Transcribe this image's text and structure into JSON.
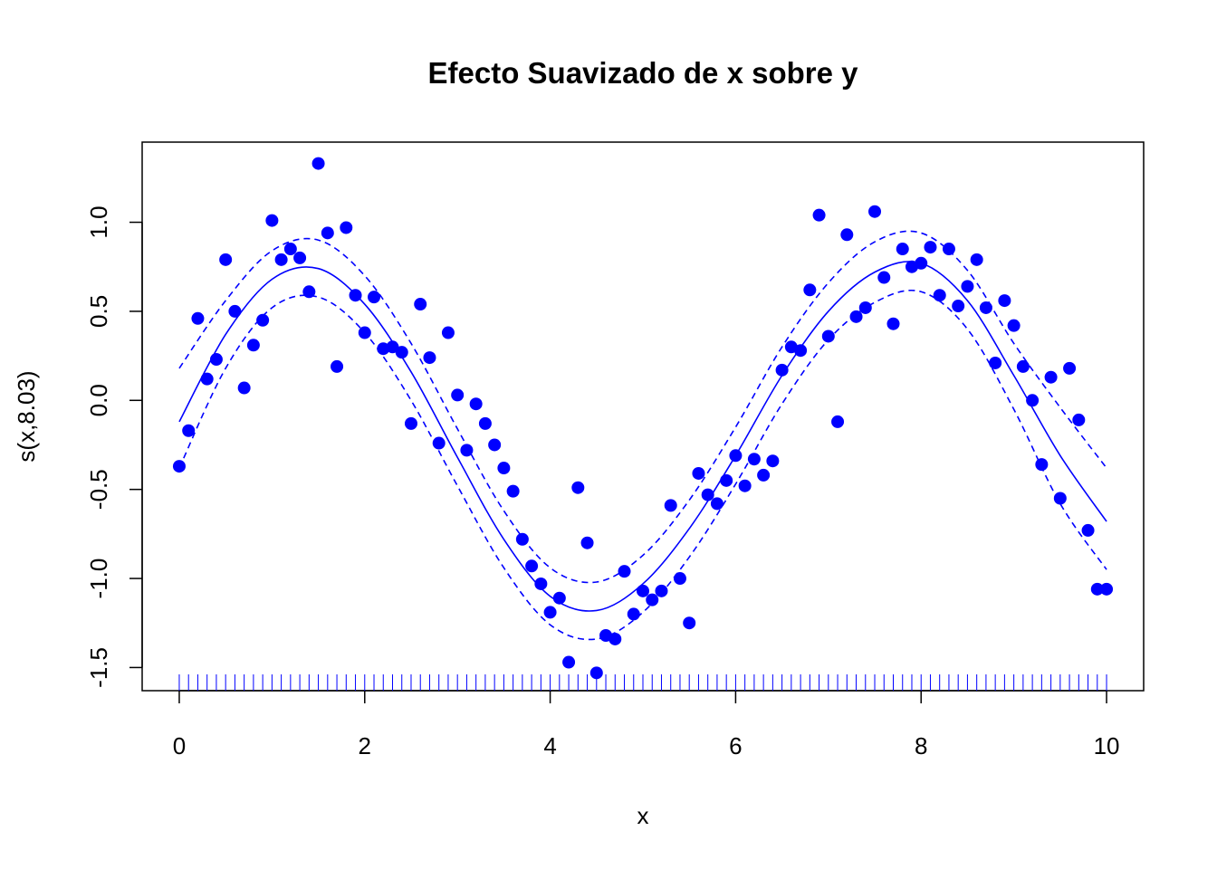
{
  "chart_data": {
    "type": "scatter",
    "title": "Efecto Suavizado de x sobre y",
    "xlabel": "x",
    "ylabel": "s(x,8.03)",
    "xlim": [
      -0.4,
      10.4
    ],
    "ylim": [
      -1.63,
      1.45
    ],
    "x_ticks": [
      0,
      2,
      4,
      6,
      8,
      10
    ],
    "x_tick_labels": [
      "0",
      "2",
      "4",
      "6",
      "8",
      "10"
    ],
    "y_ticks": [
      -1.5,
      -1.0,
      -0.5,
      0.0,
      0.5,
      1.0
    ],
    "y_tick_labels": [
      "-1.5",
      "-1.0",
      "-0.5",
      "0.0",
      "0.5",
      "1.0"
    ],
    "grid": false,
    "color": "#0000ff",
    "rug": true,
    "series": [
      {
        "kind": "points",
        "x": [
          0.0,
          0.1,
          0.2,
          0.3,
          0.4,
          0.5,
          0.6,
          0.7,
          0.8,
          0.9,
          1.0,
          1.1,
          1.2,
          1.3,
          1.4,
          1.5,
          1.6,
          1.7,
          1.8,
          1.9,
          2.0,
          2.1,
          2.2,
          2.3,
          2.4,
          2.5,
          2.6,
          2.7,
          2.8,
          2.9,
          3.0,
          3.1,
          3.2,
          3.3,
          3.4,
          3.5,
          3.6,
          3.7,
          3.8,
          3.9,
          4.0,
          4.1,
          4.2,
          4.3,
          4.4,
          4.5,
          4.6,
          4.7,
          4.8,
          4.9,
          5.0,
          5.1,
          5.2,
          5.3,
          5.4,
          5.5,
          5.6,
          5.7,
          5.8,
          5.9,
          6.0,
          6.1,
          6.2,
          6.3,
          6.4,
          6.5,
          6.6,
          6.7,
          6.8,
          6.9,
          7.0,
          7.1,
          7.2,
          7.3,
          7.4,
          7.5,
          7.6,
          7.7,
          7.8,
          7.9,
          8.0,
          8.1,
          8.2,
          8.3,
          8.4,
          8.5,
          8.6,
          8.7,
          8.8,
          8.9,
          9.0,
          9.1,
          9.2,
          9.3,
          9.4,
          9.5,
          9.6,
          9.7,
          9.8,
          9.9,
          10.0
        ],
        "y": [
          -0.37,
          -0.17,
          0.46,
          0.12,
          0.23,
          0.79,
          0.5,
          0.07,
          0.31,
          0.45,
          1.01,
          0.79,
          0.85,
          0.8,
          0.61,
          1.33,
          0.94,
          0.19,
          0.97,
          0.59,
          0.38,
          0.58,
          0.29,
          0.3,
          0.27,
          -0.13,
          0.54,
          0.24,
          -0.24,
          0.38,
          0.03,
          -0.28,
          -0.02,
          -0.13,
          -0.25,
          -0.38,
          -0.51,
          -0.78,
          -0.93,
          -1.03,
          -1.19,
          -1.11,
          -1.47,
          -0.49,
          -0.8,
          -1.53,
          -1.32,
          -1.34,
          -0.96,
          -1.2,
          -1.07,
          -1.12,
          -1.07,
          -0.59,
          -1.0,
          -1.25,
          -0.41,
          -0.53,
          -0.58,
          -0.45,
          -0.31,
          -0.48,
          -0.33,
          -0.42,
          -0.34,
          0.17,
          0.3,
          0.28,
          0.62,
          1.04,
          0.36,
          -0.12,
          0.93,
          0.47,
          0.52,
          1.06,
          0.69,
          0.43,
          0.85,
          0.75,
          0.77,
          0.86,
          0.59,
          0.85,
          0.53,
          0.64,
          0.79,
          0.52,
          0.21,
          0.56,
          0.42,
          0.19,
          0.0,
          -0.36,
          0.13,
          -0.55,
          0.18,
          -0.11,
          -0.73,
          -1.06,
          -1.06
        ]
      },
      {
        "kind": "fit",
        "x": [
          0.0,
          0.5,
          1.0,
          1.5,
          2.0,
          2.5,
          3.0,
          3.5,
          4.0,
          4.5,
          5.0,
          5.5,
          6.0,
          6.5,
          7.0,
          7.5,
          8.0,
          8.5,
          9.0,
          9.5,
          10.0
        ],
        "y": [
          -0.12,
          0.37,
          0.68,
          0.74,
          0.54,
          0.16,
          -0.32,
          -0.78,
          -1.1,
          -1.18,
          -1.03,
          -0.72,
          -0.31,
          0.14,
          0.5,
          0.72,
          0.77,
          0.56,
          0.14,
          -0.31,
          -0.68
        ]
      },
      {
        "kind": "upper",
        "x": [
          0.0,
          0.5,
          1.0,
          1.5,
          2.0,
          2.5,
          3.0,
          3.5,
          4.0,
          4.5,
          5.0,
          5.5,
          6.0,
          6.5,
          7.0,
          7.5,
          8.0,
          8.5,
          9.0,
          9.5,
          10.0
        ],
        "y": [
          0.18,
          0.56,
          0.84,
          0.9,
          0.7,
          0.32,
          -0.16,
          -0.62,
          -0.94,
          -1.02,
          -0.87,
          -0.56,
          -0.15,
          0.3,
          0.66,
          0.89,
          0.94,
          0.73,
          0.32,
          -0.04,
          -0.38
        ]
      },
      {
        "kind": "lower",
        "x": [
          0.0,
          0.5,
          1.0,
          1.5,
          2.0,
          2.5,
          3.0,
          3.5,
          4.0,
          4.5,
          5.0,
          5.5,
          6.0,
          6.5,
          7.0,
          7.5,
          8.0,
          8.5,
          9.0,
          9.5,
          10.0
        ],
        "y": [
          -0.38,
          0.18,
          0.52,
          0.58,
          0.38,
          0.0,
          -0.48,
          -0.94,
          -1.26,
          -1.34,
          -1.19,
          -0.88,
          -0.47,
          -0.02,
          0.34,
          0.55,
          0.61,
          0.4,
          -0.05,
          -0.58,
          -0.95
        ]
      }
    ]
  }
}
